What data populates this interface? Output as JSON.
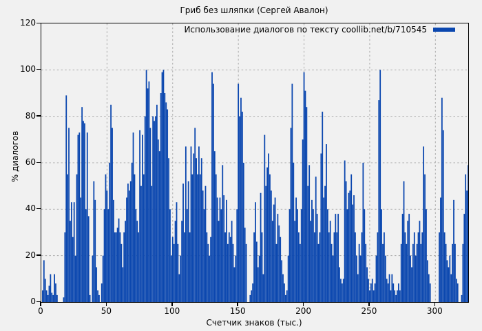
{
  "title": "Гриб без шляпки (Сергей Авалон)",
  "legend": {
    "label": "Использование диалогов по тексту coollib.net/b/710545",
    "swatch_color": "#0b47af"
  },
  "axes": {
    "y_label": "% диалогов",
    "x_label": "Счетчик знаков (тыс.)",
    "y_ticks": [
      0,
      20,
      40,
      60,
      80,
      100,
      120
    ],
    "x_ticks": [
      0,
      50,
      100,
      150,
      200,
      250,
      300
    ]
  },
  "colors": {
    "bar": "#0b47af",
    "grid": "#a9a9a9",
    "background": "#f1f1f1",
    "border": "#000000"
  },
  "chart_data": {
    "type": "bar",
    "title": "Гриб без шляпки (Сергей Авалон)",
    "series_name": "Использование диалогов по тексту coollib.net/b/710545",
    "xlabel": "Счетчик знаков (тыс.)",
    "ylabel": "% диалогов",
    "xlim": [
      0,
      325
    ],
    "ylim": [
      0,
      120
    ],
    "grid": true,
    "legend_position": "top-right",
    "x_start": 0,
    "x_step": 1,
    "values": [
      0,
      5,
      18,
      10,
      5,
      3,
      7,
      12,
      4,
      3,
      12,
      8,
      3,
      0,
      0,
      0,
      0,
      2,
      30,
      89,
      55,
      75,
      35,
      43,
      28,
      43,
      20,
      55,
      72,
      73,
      45,
      84,
      78,
      77,
      40,
      73,
      37,
      3,
      0,
      20,
      52,
      44,
      15,
      5,
      3,
      0,
      8,
      20,
      40,
      55,
      48,
      40,
      60,
      85,
      75,
      44,
      30,
      30,
      32,
      36,
      30,
      25,
      15,
      30,
      35,
      45,
      51,
      48,
      52,
      60,
      73,
      55,
      40,
      35,
      30,
      74,
      50,
      72,
      55,
      80,
      100,
      92,
      95,
      75,
      50,
      80,
      78,
      80,
      85,
      70,
      65,
      90,
      99,
      100,
      90,
      86,
      83,
      62,
      40,
      20,
      28,
      25,
      35,
      43,
      25,
      12,
      20,
      35,
      51,
      30,
      67,
      40,
      52,
      30,
      67,
      55,
      64,
      75,
      62,
      55,
      67,
      55,
      62,
      48,
      40,
      50,
      30,
      25,
      20,
      28,
      99,
      94,
      65,
      55,
      45,
      35,
      45,
      40,
      59,
      46,
      30,
      44,
      25,
      30,
      28,
      35,
      25,
      15,
      20,
      40,
      94,
      80,
      88,
      82,
      60,
      32,
      25,
      0,
      0,
      3,
      5,
      8,
      30,
      43,
      26,
      15,
      20,
      47,
      30,
      12,
      72,
      50,
      58,
      64,
      55,
      48,
      35,
      42,
      45,
      25,
      38,
      33,
      28,
      18,
      12,
      8,
      3,
      5,
      20,
      40,
      75,
      94,
      60,
      35,
      45,
      40,
      30,
      25,
      40,
      70,
      99,
      91,
      84,
      50,
      59,
      35,
      44,
      40,
      30,
      54,
      38,
      25,
      30,
      64,
      82,
      45,
      50,
      68,
      40,
      30,
      35,
      25,
      20,
      30,
      38,
      30,
      38,
      15,
      10,
      8,
      10,
      61,
      52,
      40,
      47,
      48,
      55,
      42,
      46,
      30,
      20,
      12,
      25,
      20,
      30,
      60,
      40,
      25,
      15,
      10,
      5,
      8,
      10,
      5,
      8,
      20,
      30,
      87,
      100,
      40,
      25,
      30,
      20,
      10,
      8,
      12,
      5,
      12,
      8,
      5,
      3,
      5,
      8,
      5,
      25,
      38,
      52,
      30,
      25,
      35,
      38,
      20,
      15,
      25,
      30,
      20,
      25,
      30,
      35,
      25,
      30,
      67,
      55,
      40,
      18,
      12,
      8,
      0,
      0,
      0,
      0,
      0,
      0,
      30,
      45,
      88,
      74,
      30,
      25,
      18,
      15,
      20,
      12,
      25,
      44,
      25,
      10,
      8,
      0,
      0,
      3,
      25,
      38,
      55,
      48,
      59
    ]
  }
}
